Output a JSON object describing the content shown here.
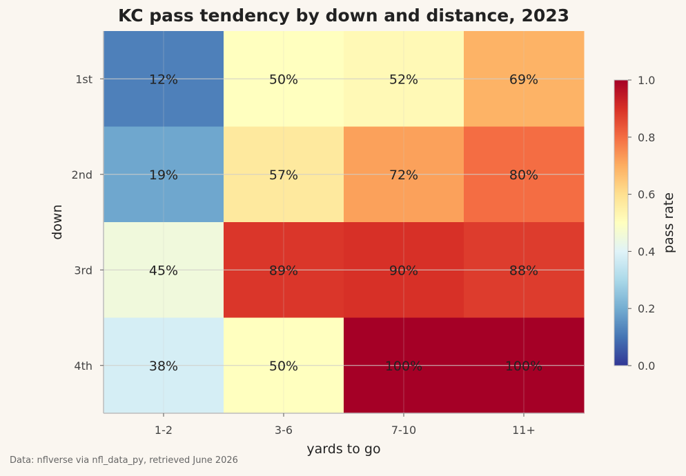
{
  "chart_data": {
    "type": "heatmap",
    "title": "KC pass tendency by down and distance, 2023",
    "xlabel": "yards to go",
    "ylabel": "down",
    "x_categories": [
      "1-2",
      "3-6",
      "7-10",
      "11+"
    ],
    "y_categories": [
      "1st",
      "2nd",
      "3rd",
      "4th"
    ],
    "values": [
      [
        0.12,
        0.5,
        0.52,
        0.69
      ],
      [
        0.19,
        0.57,
        0.72,
        0.8
      ],
      [
        0.45,
        0.89,
        0.9,
        0.88
      ],
      [
        0.38,
        0.5,
        1.0,
        1.0
      ]
    ],
    "cell_labels": [
      [
        "12%",
        "50%",
        "52%",
        "69%"
      ],
      [
        "19%",
        "57%",
        "72%",
        "80%"
      ],
      [
        "45%",
        "89%",
        "90%",
        "88%"
      ],
      [
        "38%",
        "50%",
        "100%",
        "100%"
      ]
    ],
    "colorbar": {
      "label": "pass rate",
      "range": [
        0,
        1
      ],
      "ticks": [
        "0.0",
        "0.2",
        "0.4",
        "0.6",
        "0.8",
        "1.0"
      ],
      "colormap": "RdYlBu_r"
    },
    "grid": true
  },
  "footer": {
    "source": "Data: nflverse via nfl_data_py, retrieved June 2026"
  },
  "colors": {
    "background": "#faf6f0",
    "text": "#222222",
    "tick_text": "#444444",
    "frame": "#bcbcbc",
    "grid": "#d0cdc8"
  }
}
